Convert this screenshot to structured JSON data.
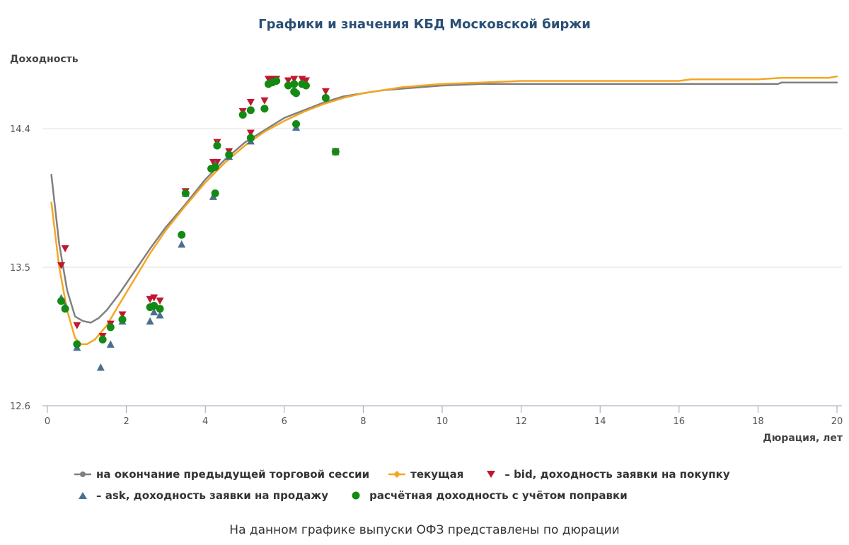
{
  "title": "Графики и значения КБД Московской биржи",
  "caption": "На данном графике выпуски ОФЗ представлены по дюрации",
  "legend": {
    "prev": "на окончание предыдущей торговой сессии",
    "current": "текущая",
    "bid": "– bid, доходность заявки на покупку",
    "ask": "– ask, доходность заявки на продажу",
    "calc": "расчётная доходность с учётом поправки"
  },
  "colors": {
    "prev": "#808080",
    "current": "#f5a623",
    "bid": "#c0182e",
    "ask": "#4a6f8f",
    "calc": "#138a13",
    "grid": "#e2e2e2",
    "axis": "#9aa3b5"
  },
  "chart_data": {
    "type": "line",
    "xlabel": "Дюрация, лет",
    "ylabel": "Доходность",
    "xlim": [
      0,
      20
    ],
    "ylim": [
      12.6,
      14.6
    ],
    "xticks": [
      "0",
      "2",
      "4",
      "6",
      "8",
      "10",
      "12",
      "14",
      "16",
      "18",
      "20"
    ],
    "yticks": [
      "12.6",
      "13.5",
      "14.4"
    ],
    "grid": true,
    "legend_position": "bottom",
    "series": [
      {
        "name": "на окончание предыдущей торговой сессии",
        "kind": "line",
        "points": [
          [
            0.1,
            14.1
          ],
          [
            0.3,
            13.65
          ],
          [
            0.5,
            13.35
          ],
          [
            0.7,
            13.18
          ],
          [
            0.9,
            13.15
          ],
          [
            1.1,
            13.14
          ],
          [
            1.3,
            13.17
          ],
          [
            1.5,
            13.22
          ],
          [
            1.8,
            13.32
          ],
          [
            2.2,
            13.47
          ],
          [
            2.6,
            13.62
          ],
          [
            3.0,
            13.76
          ],
          [
            3.5,
            13.91
          ],
          [
            4.0,
            14.07
          ],
          [
            4.5,
            14.2
          ],
          [
            5.0,
            14.31
          ],
          [
            5.5,
            14.39
          ],
          [
            6.0,
            14.47
          ],
          [
            6.5,
            14.52
          ],
          [
            7.0,
            14.57
          ],
          [
            7.5,
            14.61
          ],
          [
            8.0,
            14.63
          ],
          [
            8.5,
            14.65
          ],
          [
            9.0,
            14.66
          ],
          [
            10.0,
            14.68
          ],
          [
            11.0,
            14.69
          ],
          [
            12.0,
            14.69
          ],
          [
            14.0,
            14.69
          ],
          [
            16.0,
            14.69
          ],
          [
            18.5,
            14.69
          ],
          [
            18.6,
            14.7
          ],
          [
            20.0,
            14.7
          ]
        ]
      },
      {
        "name": "текущая",
        "kind": "line",
        "points": [
          [
            0.1,
            13.92
          ],
          [
            0.3,
            13.5
          ],
          [
            0.5,
            13.22
          ],
          [
            0.7,
            13.04
          ],
          [
            0.85,
            13.0
          ],
          [
            1.0,
            13.0
          ],
          [
            1.2,
            13.03
          ],
          [
            1.5,
            13.12
          ],
          [
            1.8,
            13.25
          ],
          [
            2.2,
            13.42
          ],
          [
            2.6,
            13.59
          ],
          [
            3.0,
            13.74
          ],
          [
            3.5,
            13.9
          ],
          [
            4.0,
            14.05
          ],
          [
            4.5,
            14.18
          ],
          [
            5.0,
            14.29
          ],
          [
            5.5,
            14.38
          ],
          [
            6.0,
            14.45
          ],
          [
            6.5,
            14.51
          ],
          [
            7.0,
            14.56
          ],
          [
            7.5,
            14.6
          ],
          [
            8.0,
            14.63
          ],
          [
            8.5,
            14.65
          ],
          [
            9.0,
            14.67
          ],
          [
            10.0,
            14.69
          ],
          [
            11.0,
            14.7
          ],
          [
            12.0,
            14.71
          ],
          [
            13.0,
            14.71
          ],
          [
            14.0,
            14.71
          ],
          [
            16.0,
            14.71
          ],
          [
            16.3,
            14.72
          ],
          [
            18.0,
            14.72
          ],
          [
            18.6,
            14.73
          ],
          [
            19.8,
            14.73
          ],
          [
            20.0,
            14.74
          ]
        ]
      },
      {
        "name": "– bid, доходность заявки на покупку",
        "kind": "triangle-down",
        "points": [
          [
            0.35,
            13.51
          ],
          [
            0.45,
            13.62
          ],
          [
            0.75,
            13.12
          ],
          [
            1.4,
            13.05
          ],
          [
            1.6,
            13.13
          ],
          [
            1.9,
            13.19
          ],
          [
            2.6,
            13.29
          ],
          [
            2.7,
            13.3
          ],
          [
            2.85,
            13.28
          ],
          [
            3.5,
            13.99
          ],
          [
            4.2,
            14.18
          ],
          [
            4.3,
            14.18
          ],
          [
            4.3,
            14.31
          ],
          [
            4.6,
            14.25
          ],
          [
            4.95,
            14.51
          ],
          [
            5.15,
            14.57
          ],
          [
            5.15,
            14.37
          ],
          [
            5.5,
            14.58
          ],
          [
            5.6,
            14.72
          ],
          [
            5.7,
            14.72
          ],
          [
            5.8,
            14.72
          ],
          [
            6.1,
            14.71
          ],
          [
            6.25,
            14.72
          ],
          [
            6.45,
            14.72
          ],
          [
            6.55,
            14.71
          ],
          [
            7.05,
            14.64
          ],
          [
            7.3,
            14.25
          ]
        ]
      },
      {
        "name": "– ask, доходность заявки на продажу",
        "kind": "triangle-up",
        "points": [
          [
            0.35,
            13.3
          ],
          [
            0.45,
            13.25
          ],
          [
            0.75,
            12.98
          ],
          [
            1.35,
            12.85
          ],
          [
            1.6,
            13.0
          ],
          [
            1.9,
            13.15
          ],
          [
            2.6,
            13.15
          ],
          [
            2.7,
            13.21
          ],
          [
            2.85,
            13.19
          ],
          [
            3.4,
            13.65
          ],
          [
            3.5,
            13.98
          ],
          [
            4.2,
            13.96
          ],
          [
            4.25,
            14.17
          ],
          [
            4.3,
            14.3
          ],
          [
            4.6,
            14.22
          ],
          [
            5.15,
            14.32
          ],
          [
            6.3,
            14.41
          ],
          [
            7.3,
            14.25
          ]
        ]
      },
      {
        "name": "расчётная доходность с учётом поправки",
        "kind": "circle",
        "points": [
          [
            0.35,
            13.28
          ],
          [
            0.45,
            13.23
          ],
          [
            0.75,
            13.0
          ],
          [
            1.4,
            13.03
          ],
          [
            1.6,
            13.11
          ],
          [
            1.9,
            13.16
          ],
          [
            2.6,
            13.24
          ],
          [
            2.7,
            13.25
          ],
          [
            2.85,
            13.23
          ],
          [
            3.4,
            13.71
          ],
          [
            3.5,
            13.98
          ],
          [
            4.15,
            14.14
          ],
          [
            4.25,
            14.15
          ],
          [
            4.25,
            13.98
          ],
          [
            4.3,
            14.29
          ],
          [
            4.6,
            14.23
          ],
          [
            4.95,
            14.49
          ],
          [
            5.15,
            14.52
          ],
          [
            5.15,
            14.34
          ],
          [
            5.5,
            14.53
          ],
          [
            5.6,
            14.69
          ],
          [
            5.7,
            14.7
          ],
          [
            5.8,
            14.71
          ],
          [
            6.1,
            14.68
          ],
          [
            6.25,
            14.69
          ],
          [
            6.25,
            14.64
          ],
          [
            6.3,
            14.63
          ],
          [
            6.45,
            14.69
          ],
          [
            6.55,
            14.68
          ],
          [
            7.05,
            14.6
          ],
          [
            7.3,
            14.25
          ],
          [
            6.3,
            14.43
          ]
        ]
      }
    ]
  }
}
